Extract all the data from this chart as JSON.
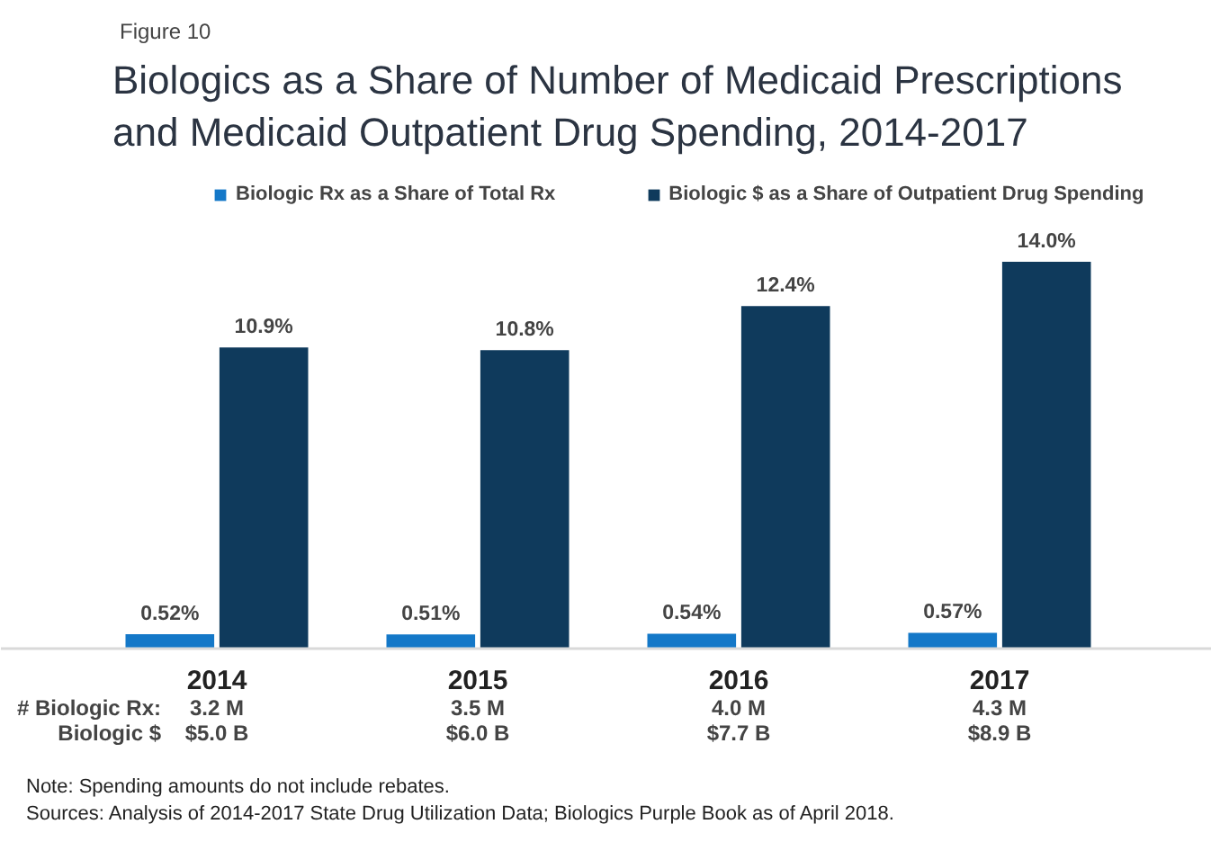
{
  "chart_data": {
    "type": "bar",
    "title": "Biologics as a Share of Number of Medicaid Prescriptions\nand Medicaid Outpatient Drug Spending, 2014-2017",
    "categories": [
      "2014",
      "2015",
      "2016",
      "2017"
    ],
    "series": [
      {
        "name": "Biologic Rx as a Share of Total Rx",
        "color": "#1478c8",
        "values": [
          0.52,
          0.51,
          0.54,
          0.57
        ],
        "value_labels": [
          "0.52%",
          "0.51%",
          "0.54%",
          "0.57%"
        ]
      },
      {
        "name": "Biologic $ as a Share of Outpatient Drug Spending",
        "color": "#0f3a5c",
        "values": [
          10.9,
          10.8,
          12.4,
          14.0
        ],
        "value_labels": [
          "10.9%",
          "10.8%",
          "12.4%",
          "14.0%"
        ]
      }
    ],
    "legend": "top",
    "grid": false,
    "annotations": [
      "Figure 10",
      "# Biologic Rx:",
      "3.2 M",
      "3.5 M",
      "4.0 M",
      "4.3 M",
      "Biologic $",
      "$5.0 B",
      "$6.0 B",
      "$7.7 B",
      "$8.9 B",
      "Note: Spending amounts do not include rebates.",
      "Sources: Analysis of 2014-2017 State Drug Utilization Data; Biologics Purple Book as of April 2018."
    ]
  }
}
